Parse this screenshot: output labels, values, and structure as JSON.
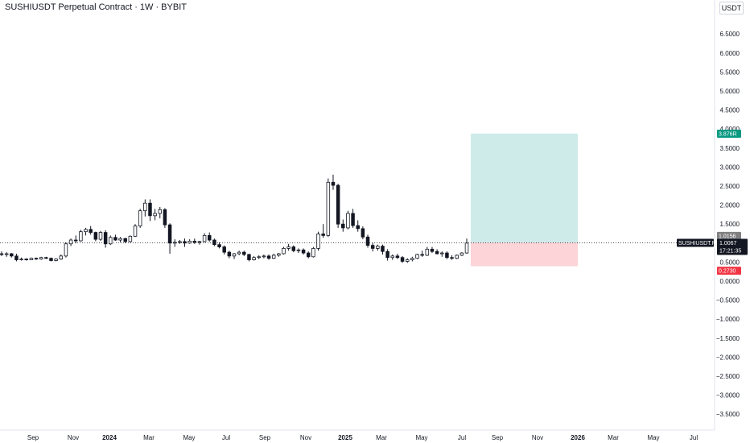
{
  "header": {
    "title": "SUSHIUSDT Perpetual Contract · 1W · BYBIT",
    "currency": "USDT"
  },
  "price_tags": {
    "target_label": "3.876R",
    "entry_label": "1.0156",
    "stop_label": "0.2730",
    "symbol_label": "SUSHIUSDT.P",
    "last_price_label": "1.0067",
    "countdown_label": "17:21:35"
  },
  "colors": {
    "up_body": "#ffffff",
    "down_body": "#131722",
    "wick": "#131722",
    "target_zone": "#26a69a",
    "stop_zone": "#f7525f",
    "target_tag": "#089981",
    "entry_tag": "#808080",
    "stop_tag": "#f23645",
    "symbol_tag": "#131722",
    "last_line": "#131722"
  },
  "chart_data": {
    "type": "candlestick",
    "title": "SUSHIUSDT Perpetual Contract · 1W · BYBIT",
    "currency": "USDT",
    "y_range": [
      -3.6,
      7.0
    ],
    "y_ticks": [
      "6.5000",
      "6.0000",
      "5.5000",
      "5.0000",
      "4.5000",
      "4.0000",
      "3.5000",
      "3.0000",
      "2.5000",
      "2.0000",
      "1.5000",
      "1.0000",
      "0.5000",
      "0.0000",
      "−0.5000",
      "−1.0000",
      "−1.5000",
      "−2.0000",
      "−2.5000",
      "−3.0000",
      "−3.5000"
    ],
    "x_ticks": [
      "Sep",
      "Nov",
      "2024",
      "Mar",
      "May",
      "Jul",
      "Sep",
      "Nov",
      "2025",
      "Mar",
      "May",
      "Jul",
      "Sep",
      "Nov",
      "2026",
      "Mar",
      "May",
      "Jul"
    ],
    "bold_x_ticks": [
      "2024",
      "2025",
      "2026"
    ],
    "candles": [
      {
        "o": 0.72,
        "h": 0.78,
        "l": 0.66,
        "c": 0.7
      },
      {
        "o": 0.7,
        "h": 0.76,
        "l": 0.64,
        "c": 0.72
      },
      {
        "o": 0.72,
        "h": 0.74,
        "l": 0.62,
        "c": 0.66
      },
      {
        "o": 0.66,
        "h": 0.72,
        "l": 0.52,
        "c": 0.56
      },
      {
        "o": 0.56,
        "h": 0.62,
        "l": 0.54,
        "c": 0.58
      },
      {
        "o": 0.58,
        "h": 0.6,
        "l": 0.54,
        "c": 0.56
      },
      {
        "o": 0.56,
        "h": 0.62,
        "l": 0.55,
        "c": 0.6
      },
      {
        "o": 0.6,
        "h": 0.62,
        "l": 0.56,
        "c": 0.58
      },
      {
        "o": 0.58,
        "h": 0.64,
        "l": 0.56,
        "c": 0.62
      },
      {
        "o": 0.62,
        "h": 0.64,
        "l": 0.58,
        "c": 0.6
      },
      {
        "o": 0.6,
        "h": 0.62,
        "l": 0.52,
        "c": 0.54
      },
      {
        "o": 0.54,
        "h": 0.6,
        "l": 0.52,
        "c": 0.58
      },
      {
        "o": 0.58,
        "h": 0.7,
        "l": 0.56,
        "c": 0.66
      },
      {
        "o": 0.66,
        "h": 1.02,
        "l": 0.62,
        "c": 0.98
      },
      {
        "o": 0.98,
        "h": 1.12,
        "l": 0.92,
        "c": 1.08
      },
      {
        "o": 1.08,
        "h": 1.2,
        "l": 1.0,
        "c": 1.06
      },
      {
        "o": 1.06,
        "h": 1.35,
        "l": 1.04,
        "c": 1.3
      },
      {
        "o": 1.3,
        "h": 1.4,
        "l": 1.2,
        "c": 1.36
      },
      {
        "o": 1.36,
        "h": 1.45,
        "l": 1.22,
        "c": 1.28
      },
      {
        "o": 1.28,
        "h": 1.3,
        "l": 1.05,
        "c": 1.1
      },
      {
        "o": 1.1,
        "h": 1.32,
        "l": 1.06,
        "c": 1.28
      },
      {
        "o": 1.28,
        "h": 1.34,
        "l": 0.88,
        "c": 0.98
      },
      {
        "o": 0.98,
        "h": 1.2,
        "l": 0.95,
        "c": 1.15
      },
      {
        "o": 1.15,
        "h": 1.22,
        "l": 1.06,
        "c": 1.08
      },
      {
        "o": 1.08,
        "h": 1.16,
        "l": 1.02,
        "c": 1.12
      },
      {
        "o": 1.12,
        "h": 1.14,
        "l": 1.0,
        "c": 1.04
      },
      {
        "o": 1.04,
        "h": 1.2,
        "l": 1.02,
        "c": 1.18
      },
      {
        "o": 1.18,
        "h": 1.5,
        "l": 1.16,
        "c": 1.45
      },
      {
        "o": 1.45,
        "h": 1.9,
        "l": 1.4,
        "c": 1.85
      },
      {
        "o": 1.85,
        "h": 2.15,
        "l": 1.7,
        "c": 2.05
      },
      {
        "o": 2.05,
        "h": 2.15,
        "l": 1.58,
        "c": 1.72
      },
      {
        "o": 1.72,
        "h": 1.9,
        "l": 1.6,
        "c": 1.78
      },
      {
        "o": 1.78,
        "h": 1.95,
        "l": 1.65,
        "c": 1.88
      },
      {
        "o": 1.88,
        "h": 1.92,
        "l": 1.4,
        "c": 1.48
      },
      {
        "o": 1.48,
        "h": 1.52,
        "l": 0.72,
        "c": 1.0
      },
      {
        "o": 1.0,
        "h": 1.1,
        "l": 0.9,
        "c": 1.02
      },
      {
        "o": 1.02,
        "h": 1.08,
        "l": 0.98,
        "c": 1.04
      },
      {
        "o": 1.04,
        "h": 1.12,
        "l": 0.9,
        "c": 1.0
      },
      {
        "o": 1.0,
        "h": 1.1,
        "l": 0.98,
        "c": 1.05
      },
      {
        "o": 1.05,
        "h": 1.12,
        "l": 0.98,
        "c": 1.02
      },
      {
        "o": 1.02,
        "h": 1.06,
        "l": 0.96,
        "c": 1.04
      },
      {
        "o": 1.04,
        "h": 1.26,
        "l": 1.02,
        "c": 1.2
      },
      {
        "o": 1.2,
        "h": 1.28,
        "l": 1.04,
        "c": 1.08
      },
      {
        "o": 1.08,
        "h": 1.12,
        "l": 0.92,
        "c": 0.96
      },
      {
        "o": 0.96,
        "h": 1.02,
        "l": 0.86,
        "c": 0.9
      },
      {
        "o": 0.9,
        "h": 0.94,
        "l": 0.7,
        "c": 0.76
      },
      {
        "o": 0.76,
        "h": 0.8,
        "l": 0.6,
        "c": 0.66
      },
      {
        "o": 0.66,
        "h": 0.74,
        "l": 0.58,
        "c": 0.72
      },
      {
        "o": 0.72,
        "h": 0.8,
        "l": 0.68,
        "c": 0.76
      },
      {
        "o": 0.76,
        "h": 0.8,
        "l": 0.66,
        "c": 0.7
      },
      {
        "o": 0.7,
        "h": 0.72,
        "l": 0.52,
        "c": 0.56
      },
      {
        "o": 0.56,
        "h": 0.66,
        "l": 0.54,
        "c": 0.62
      },
      {
        "o": 0.62,
        "h": 0.68,
        "l": 0.58,
        "c": 0.64
      },
      {
        "o": 0.64,
        "h": 0.7,
        "l": 0.6,
        "c": 0.66
      },
      {
        "o": 0.66,
        "h": 0.7,
        "l": 0.56,
        "c": 0.6
      },
      {
        "o": 0.6,
        "h": 0.72,
        "l": 0.58,
        "c": 0.68
      },
      {
        "o": 0.68,
        "h": 0.74,
        "l": 0.64,
        "c": 0.72
      },
      {
        "o": 0.72,
        "h": 0.9,
        "l": 0.7,
        "c": 0.86
      },
      {
        "o": 0.86,
        "h": 0.98,
        "l": 0.8,
        "c": 0.9
      },
      {
        "o": 0.9,
        "h": 0.94,
        "l": 0.76,
        "c": 0.8
      },
      {
        "o": 0.8,
        "h": 0.86,
        "l": 0.74,
        "c": 0.82
      },
      {
        "o": 0.82,
        "h": 0.86,
        "l": 0.7,
        "c": 0.74
      },
      {
        "o": 0.74,
        "h": 0.78,
        "l": 0.6,
        "c": 0.64
      },
      {
        "o": 0.64,
        "h": 0.9,
        "l": 0.62,
        "c": 0.86
      },
      {
        "o": 0.86,
        "h": 1.3,
        "l": 0.8,
        "c": 1.24
      },
      {
        "o": 1.24,
        "h": 1.5,
        "l": 1.14,
        "c": 1.2
      },
      {
        "o": 1.2,
        "h": 2.7,
        "l": 1.16,
        "c": 2.6
      },
      {
        "o": 2.6,
        "h": 2.8,
        "l": 2.4,
        "c": 2.52
      },
      {
        "o": 2.52,
        "h": 2.56,
        "l": 1.4,
        "c": 1.5
      },
      {
        "o": 1.5,
        "h": 1.62,
        "l": 1.3,
        "c": 1.4
      },
      {
        "o": 1.4,
        "h": 1.85,
        "l": 1.36,
        "c": 1.78
      },
      {
        "o": 1.78,
        "h": 1.9,
        "l": 1.4,
        "c": 1.46
      },
      {
        "o": 1.46,
        "h": 1.6,
        "l": 1.3,
        "c": 1.38
      },
      {
        "o": 1.38,
        "h": 1.44,
        "l": 1.1,
        "c": 1.16
      },
      {
        "o": 1.16,
        "h": 1.22,
        "l": 0.88,
        "c": 0.94
      },
      {
        "o": 0.94,
        "h": 1.0,
        "l": 0.78,
        "c": 0.86
      },
      {
        "o": 0.86,
        "h": 0.96,
        "l": 0.8,
        "c": 0.92
      },
      {
        "o": 0.92,
        "h": 0.96,
        "l": 0.7,
        "c": 0.78
      },
      {
        "o": 0.78,
        "h": 0.84,
        "l": 0.54,
        "c": 0.62
      },
      {
        "o": 0.62,
        "h": 0.7,
        "l": 0.56,
        "c": 0.66
      },
      {
        "o": 0.66,
        "h": 0.72,
        "l": 0.58,
        "c": 0.62
      },
      {
        "o": 0.62,
        "h": 0.66,
        "l": 0.48,
        "c": 0.52
      },
      {
        "o": 0.52,
        "h": 0.6,
        "l": 0.48,
        "c": 0.56
      },
      {
        "o": 0.56,
        "h": 0.64,
        "l": 0.52,
        "c": 0.6
      },
      {
        "o": 0.6,
        "h": 0.72,
        "l": 0.58,
        "c": 0.7
      },
      {
        "o": 0.7,
        "h": 0.8,
        "l": 0.64,
        "c": 0.68
      },
      {
        "o": 0.68,
        "h": 0.9,
        "l": 0.66,
        "c": 0.84
      },
      {
        "o": 0.84,
        "h": 0.9,
        "l": 0.74,
        "c": 0.78
      },
      {
        "o": 0.78,
        "h": 0.84,
        "l": 0.7,
        "c": 0.72
      },
      {
        "o": 0.72,
        "h": 0.78,
        "l": 0.64,
        "c": 0.74
      },
      {
        "o": 0.74,
        "h": 0.78,
        "l": 0.58,
        "c": 0.62
      },
      {
        "o": 0.62,
        "h": 0.68,
        "l": 0.56,
        "c": 0.6
      },
      {
        "o": 0.6,
        "h": 0.7,
        "l": 0.58,
        "c": 0.68
      },
      {
        "o": 0.68,
        "h": 0.76,
        "l": 0.66,
        "c": 0.74
      },
      {
        "o": 0.74,
        "h": 1.12,
        "l": 0.72,
        "c": 1.0
      }
    ],
    "position": {
      "entry": 1.0156,
      "stop": 0.273,
      "target": 3.876,
      "stop_bottom": 0.39,
      "target_top": 3.88
    },
    "last_price": 1.0067
  }
}
